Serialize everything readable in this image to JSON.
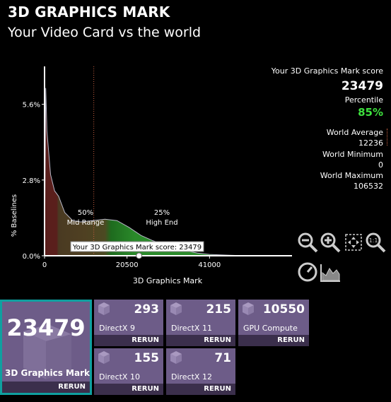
{
  "header": {
    "title": "3D GRAPHICS MARK",
    "subtitle": "Your Video Card vs the world"
  },
  "chart_data": {
    "type": "area",
    "xlabel": "3D Graphics Mark",
    "ylabel": "% Baselines",
    "x_ticks": [
      "0",
      "20500",
      "41000"
    ],
    "y_ticks": [
      "0.0%",
      "2.8%",
      "5.6%"
    ],
    "xlim": [
      0,
      61500
    ],
    "ylim": [
      0,
      7.0
    ],
    "series": [
      {
        "values": [
          [
            0,
            0
          ],
          [
            300,
            6.2
          ],
          [
            600,
            4.6
          ],
          [
            1500,
            3.0
          ],
          [
            2500,
            2.4
          ],
          [
            3500,
            2.2
          ],
          [
            5000,
            1.6
          ],
          [
            7000,
            1.3
          ],
          [
            9000,
            1.25
          ],
          [
            12000,
            1.3
          ],
          [
            15000,
            1.35
          ],
          [
            18000,
            1.3
          ],
          [
            21000,
            1.05
          ],
          [
            24000,
            0.75
          ],
          [
            27000,
            0.55
          ],
          [
            30000,
            0.4
          ],
          [
            34000,
            0.22
          ],
          [
            38000,
            0.1
          ],
          [
            41000,
            0.05
          ],
          [
            46000,
            0.02
          ],
          [
            50000,
            0
          ]
        ]
      }
    ],
    "annotations": [
      {
        "pct": "50%",
        "label": "Mid Range"
      },
      {
        "pct": "25%",
        "label": "High End"
      }
    ],
    "marker_label": "Your 3D Graphics Mark score: 23479",
    "marker_x": 23479,
    "world_average_x": 12236
  },
  "stats": {
    "score_label": "Your 3D Graphics Mark score",
    "score": "23479",
    "percentile_label": "Percentile",
    "percentile": "85%",
    "avg_label": "World Average",
    "avg": "12236",
    "min_label": "World Minimum",
    "min": "0",
    "max_label": "World Maximum",
    "max": "106532"
  },
  "colors": {
    "accent_green": "#3ee03e",
    "tile": "#6d5c88",
    "tile_dark": "#3b2f4c",
    "highlight": "#0fa0a0"
  },
  "tools": [
    "zoom-out-icon",
    "zoom-in-icon",
    "fit-icon",
    "zoom-1-1-icon",
    "gauge-icon",
    "chart-icon"
  ],
  "main_tile": {
    "score": "23479",
    "label": "3D Graphics Mark",
    "rerun": "RERUN"
  },
  "tiles": [
    {
      "score": "293",
      "label": "DirectX 9",
      "rerun": "RERUN"
    },
    {
      "score": "215",
      "label": "DirectX 11",
      "rerun": "RERUN"
    },
    {
      "score": "10550",
      "label": "GPU Compute",
      "rerun": "RERUN"
    },
    {
      "score": "155",
      "label": "DirectX 10",
      "rerun": "RERUN"
    },
    {
      "score": "71",
      "label": "DirectX 12",
      "rerun": "RERUN"
    }
  ]
}
